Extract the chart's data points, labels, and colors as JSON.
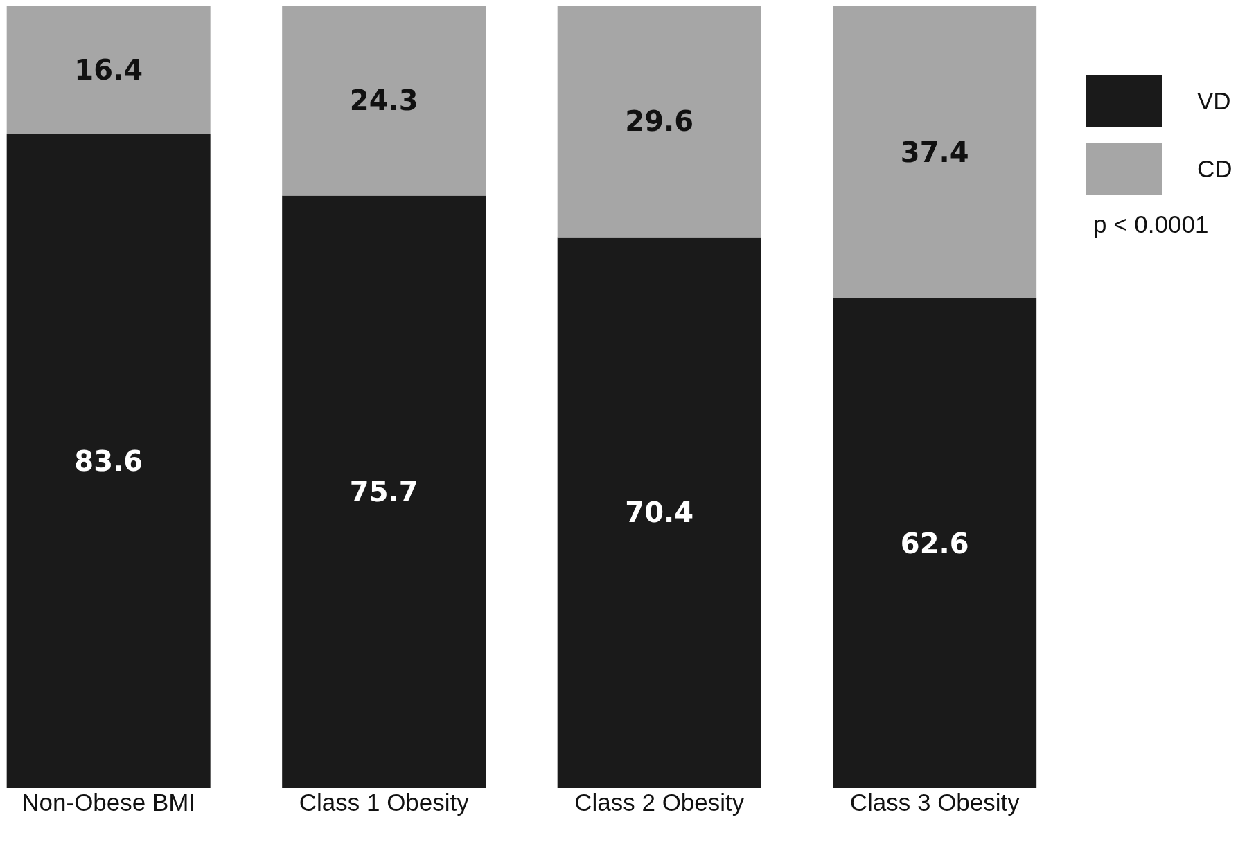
{
  "chart_data": {
    "type": "bar",
    "categories": [
      "Non-Obese BMI",
      "Class 1 Obesity",
      "Class 2 Obesity",
      "Class 3 Obesity"
    ],
    "series": [
      {
        "name": "VD",
        "color": "#1a1a1a",
        "values": [
          83.6,
          75.7,
          70.4,
          62.6
        ]
      },
      {
        "name": "CD",
        "color": "#a6a6a6",
        "values": [
          16.4,
          24.3,
          29.6,
          37.4
        ]
      }
    ],
    "stacked": true,
    "data_labels": true,
    "legend": "top right",
    "annotations": [
      "p < 0.0001"
    ]
  }
}
